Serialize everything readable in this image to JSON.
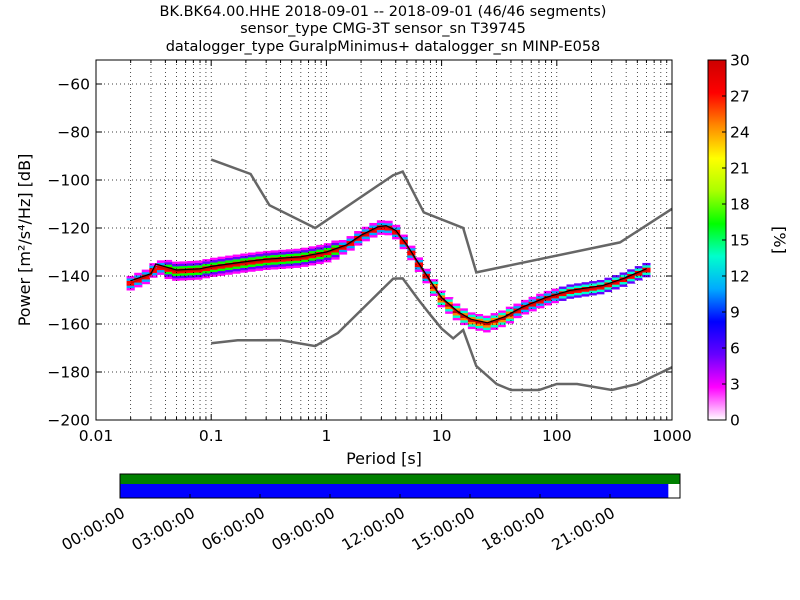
{
  "chart_data": {
    "type": "heatmap",
    "title_lines": [
      "BK.BK64.00.HHE   2018-09-01 -- 2018-09-01  (46/46 segments)",
      "sensor_type CMG-3T sensor_sn T39745",
      "datalogger_type GuralpMinimus+ datalogger_sn MINP-E058"
    ],
    "xlabel": "Period [s]",
    "ylabel": "Power [m²/s⁴/Hz] [dB]",
    "x_scale": "log",
    "xlim": [
      0.01,
      1000
    ],
    "ylim": [
      -200,
      -50
    ],
    "x_ticks": [
      {
        "value": 0.01,
        "label": "0.01"
      },
      {
        "value": 0.1,
        "label": "0.1"
      },
      {
        "value": 1,
        "label": "1"
      },
      {
        "value": 10,
        "label": "10"
      },
      {
        "value": 100,
        "label": "100"
      },
      {
        "value": 1000,
        "label": "1000"
      }
    ],
    "y_ticks": [
      {
        "value": -60,
        "label": "−60"
      },
      {
        "value": -80,
        "label": "−80"
      },
      {
        "value": -100,
        "label": "−100"
      },
      {
        "value": -120,
        "label": "−120"
      },
      {
        "value": -140,
        "label": "−140"
      },
      {
        "value": -160,
        "label": "−160"
      },
      {
        "value": -180,
        "label": "−180"
      },
      {
        "value": -200,
        "label": "−200"
      }
    ],
    "grid": true,
    "colorbar": {
      "label": "[%]",
      "range": [
        0,
        30
      ],
      "ticks": [
        {
          "value": 0,
          "label": "0"
        },
        {
          "value": 3,
          "label": "3"
        },
        {
          "value": 6,
          "label": "6"
        },
        {
          "value": 9,
          "label": "9"
        },
        {
          "value": 12,
          "label": "12"
        },
        {
          "value": 15,
          "label": "15"
        },
        {
          "value": 18,
          "label": "18"
        },
        {
          "value": 21,
          "label": "21"
        },
        {
          "value": 24,
          "label": "24"
        },
        {
          "value": 27,
          "label": "27"
        },
        {
          "value": 30,
          "label": "30"
        }
      ],
      "colors": [
        "#ffffff",
        "#ff00ff",
        "#6600ff",
        "#0000ff",
        "#00aaff",
        "#00ffcc",
        "#00ff00",
        "#aaff00",
        "#ffff00",
        "#ff8800",
        "#ff0000",
        "#cc0000"
      ]
    },
    "noise_model_high": {
      "color": "#666666",
      "points": [
        [
          0.1,
          -91.5
        ],
        [
          0.22,
          -97.5
        ],
        [
          0.32,
          -110.5
        ],
        [
          0.8,
          -120
        ],
        [
          3.8,
          -98
        ],
        [
          4.6,
          -96.5
        ],
        [
          7,
          -113.5
        ],
        [
          15.4,
          -120
        ],
        [
          20,
          -138.5
        ],
        [
          354,
          -126
        ],
        [
          1000,
          -112
        ]
      ]
    },
    "noise_model_low": {
      "color": "#666666",
      "points": [
        [
          0.1,
          -168
        ],
        [
          0.17,
          -166.8
        ],
        [
          0.4,
          -166.7
        ],
        [
          0.8,
          -169.2
        ],
        [
          1.26,
          -163.7
        ],
        [
          3.8,
          -141.1
        ],
        [
          4.6,
          -141
        ],
        [
          6.3,
          -149.9
        ],
        [
          7.9,
          -155.9
        ],
        [
          10,
          -161.9
        ],
        [
          12.6,
          -166
        ],
        [
          15.4,
          -162.5
        ],
        [
          20,
          -177.5
        ],
        [
          30,
          -185
        ],
        [
          40,
          -187.5
        ],
        [
          70,
          -187.5
        ],
        [
          100,
          -185
        ],
        [
          150,
          -185
        ],
        [
          300,
          -187.5
        ],
        [
          500,
          -185
        ],
        [
          1000,
          -178
        ]
      ]
    },
    "mean_curve": {
      "color": "#000000",
      "points": [
        [
          0.02,
          -142
        ],
        [
          0.03,
          -139
        ],
        [
          0.033,
          -135
        ],
        [
          0.05,
          -137.5
        ],
        [
          0.08,
          -137
        ],
        [
          0.1,
          -136
        ],
        [
          0.2,
          -134
        ],
        [
          0.3,
          -133
        ],
        [
          0.6,
          -132
        ],
        [
          1,
          -130
        ],
        [
          1.5,
          -127
        ],
        [
          2,
          -123
        ],
        [
          2.8,
          -119.5
        ],
        [
          3.3,
          -119
        ],
        [
          4,
          -121
        ],
        [
          5,
          -127
        ],
        [
          6,
          -133
        ],
        [
          8,
          -142
        ],
        [
          10,
          -149
        ],
        [
          14,
          -155
        ],
        [
          18,
          -158
        ],
        [
          25,
          -159.5
        ],
        [
          35,
          -157
        ],
        [
          50,
          -153
        ],
        [
          80,
          -149
        ],
        [
          130,
          -146
        ],
        [
          250,
          -144
        ],
        [
          380,
          -141
        ],
        [
          600,
          -137
        ]
      ]
    },
    "mode_curve": {
      "color": "#cc0000",
      "points": [
        [
          0.02,
          -143
        ],
        [
          0.03,
          -139.5
        ],
        [
          0.033,
          -136
        ],
        [
          0.05,
          -138
        ],
        [
          0.08,
          -137.5
        ],
        [
          0.1,
          -136.5
        ],
        [
          0.2,
          -134.5
        ],
        [
          0.3,
          -133.5
        ],
        [
          0.6,
          -132.5
        ],
        [
          1,
          -130.5
        ],
        [
          1.5,
          -127.5
        ],
        [
          2,
          -123.5
        ],
        [
          2.8,
          -120
        ],
        [
          3.3,
          -119.5
        ],
        [
          4,
          -121.5
        ],
        [
          5,
          -127.5
        ],
        [
          6,
          -133.5
        ],
        [
          8,
          -142.5
        ],
        [
          10,
          -149.5
        ],
        [
          14,
          -155.5
        ],
        [
          18,
          -158.5
        ],
        [
          25,
          -160
        ],
        [
          35,
          -157.5
        ],
        [
          50,
          -153.5
        ],
        [
          80,
          -149.5
        ],
        [
          130,
          -146.5
        ],
        [
          250,
          -144.5
        ],
        [
          380,
          -141.5
        ],
        [
          600,
          -137.5
        ]
      ]
    },
    "timeline": {
      "tick_labels": [
        "00:00:00",
        "03:00:00",
        "06:00:00",
        "09:00:00",
        "12:00:00",
        "15:00:00",
        "18:00:00",
        "21:00:00"
      ],
      "tick_hours": [
        0,
        3,
        6,
        9,
        12,
        15,
        18,
        21
      ],
      "range_hours": [
        0,
        24
      ],
      "data_segment_hours": [
        0,
        24
      ],
      "used_segment_hours": [
        0,
        23.5
      ],
      "data_color": "#008000",
      "used_color": "#0000ff"
    }
  }
}
